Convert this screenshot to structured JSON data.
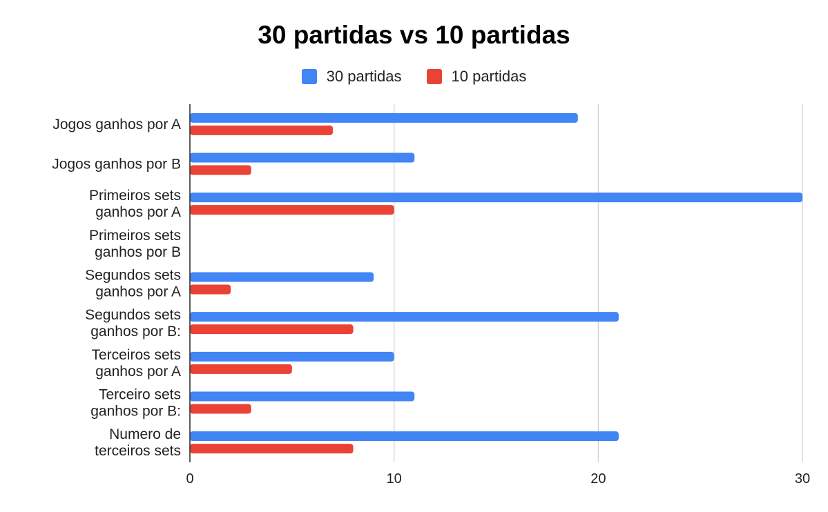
{
  "chart_data": {
    "type": "bar",
    "orientation": "horizontal",
    "title": "30 partidas vs 10 partidas",
    "xlabel": "",
    "ylabel": "",
    "categories": [
      [
        "Jogos ganhos por A"
      ],
      [
        "Jogos ganhos por B"
      ],
      [
        "Primeiros sets",
        "ganhos por A"
      ],
      [
        "Primeiros sets",
        "ganhos por B"
      ],
      [
        "Segundos sets",
        "ganhos por A"
      ],
      [
        "Segundos sets",
        "ganhos por B:"
      ],
      [
        "Terceiros sets",
        "ganhos por A"
      ],
      [
        "Terceiro sets",
        "ganhos por B:"
      ],
      [
        "Numero de",
        "terceiros sets"
      ]
    ],
    "series": [
      {
        "name": "30 partidas",
        "color": "#4285F4",
        "values": [
          19,
          11,
          30,
          0,
          9,
          21,
          10,
          11,
          21
        ]
      },
      {
        "name": "10 partidas",
        "color": "#EA4335",
        "values": [
          7,
          3,
          10,
          0,
          2,
          8,
          5,
          3,
          8
        ]
      }
    ],
    "xlim": [
      0,
      30
    ],
    "xticks": [
      0,
      10,
      20,
      30
    ],
    "grid": true,
    "legend_position": "top"
  }
}
